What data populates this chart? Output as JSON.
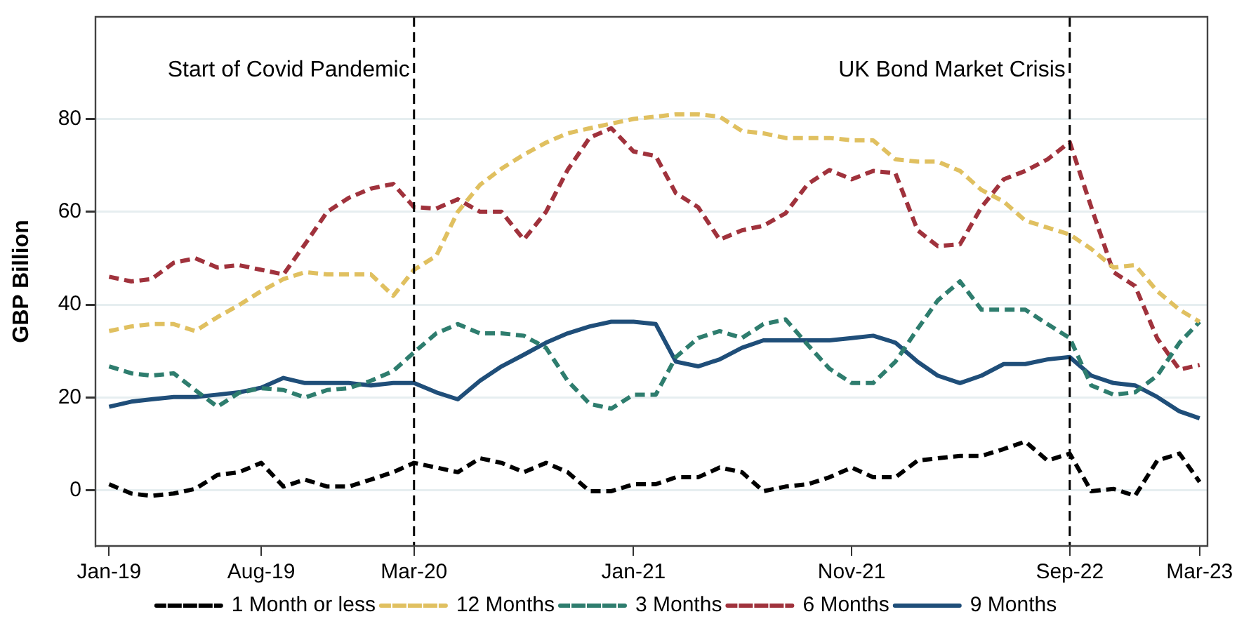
{
  "chart_data": {
    "type": "line",
    "ylabel": "GBP Billion",
    "x": [
      "2019-01",
      "2019-02",
      "2019-03",
      "2019-04",
      "2019-05",
      "2019-06",
      "2019-07",
      "2019-08",
      "2019-09",
      "2019-10",
      "2019-11",
      "2019-12",
      "2020-01",
      "2020-02",
      "2020-03",
      "2020-04",
      "2020-05",
      "2020-06",
      "2020-07",
      "2020-08",
      "2020-09",
      "2020-10",
      "2020-11",
      "2020-12",
      "2021-01",
      "2021-02",
      "2021-03",
      "2021-04",
      "2021-05",
      "2021-06",
      "2021-07",
      "2021-08",
      "2021-09",
      "2021-10",
      "2021-11",
      "2021-12",
      "2022-01",
      "2022-02",
      "2022-03",
      "2022-04",
      "2022-05",
      "2022-06",
      "2022-07",
      "2022-08",
      "2022-09",
      "2022-10",
      "2022-11",
      "2022-12",
      "2023-01",
      "2023-02",
      "2023-03"
    ],
    "series": [
      {
        "name": "1 Month or less",
        "color": "#000000",
        "line_style": "dashed",
        "values": [
          1.3,
          -0.7,
          -1.2,
          -0.7,
          0.3,
          3.3,
          3.9,
          5.9,
          0.8,
          2.3,
          0.8,
          0.8,
          2.3,
          3.9,
          5.9,
          4.9,
          3.9,
          6.9,
          5.9,
          3.9,
          5.9,
          3.9,
          -0.2,
          -0.2,
          1.3,
          1.3,
          2.8,
          2.8,
          4.9,
          3.9,
          -0.2,
          0.8,
          1.3,
          2.8,
          4.9,
          2.8,
          2.8,
          6.4,
          6.9,
          7.4,
          7.4,
          8.9,
          10.5,
          6.4,
          7.9,
          -0.2,
          0.3,
          -1.2,
          6.4,
          7.9,
          1.8
        ]
      },
      {
        "name": "12 Months",
        "color": "#e0c060",
        "line_style": "dashed",
        "values": [
          34.3,
          35.3,
          35.8,
          35.8,
          34.3,
          37.3,
          39.9,
          42.9,
          45.5,
          47,
          46.5,
          46.5,
          46.5,
          41.9,
          47.5,
          50.5,
          60,
          65.8,
          69.3,
          72.3,
          74.9,
          76.9,
          78,
          79,
          80,
          80.5,
          81,
          81,
          80.5,
          77.4,
          76.9,
          75.9,
          75.9,
          75.9,
          75.4,
          75.4,
          71.3,
          70.8,
          70.8,
          68.8,
          64.7,
          62.2,
          58.1,
          56.6,
          55.1,
          52,
          48,
          48.5,
          42.9,
          38.9,
          36.3
        ]
      },
      {
        "name": "3 Months",
        "color": "#2e7d6e",
        "line_style": "dashed",
        "values": [
          26.7,
          25.2,
          24.7,
          25.2,
          21.6,
          18,
          21,
          22,
          21.6,
          20,
          21.6,
          22,
          23.6,
          25.7,
          29.7,
          33.8,
          35.8,
          33.8,
          33.8,
          33.3,
          30.7,
          23.6,
          18.6,
          17.6,
          20.6,
          20.6,
          28.7,
          32.8,
          34.3,
          32.8,
          35.8,
          36.8,
          31.3,
          26.2,
          23.1,
          23.1,
          27.7,
          34.8,
          40.9,
          45,
          38.9,
          38.9,
          38.9,
          35.8,
          32.8,
          22.6,
          20.6,
          21.1,
          24.7,
          31.8,
          36.3
        ]
      },
      {
        "name": "6 Months",
        "color": "#a0323c",
        "line_style": "dashed",
        "values": [
          46,
          45,
          45.5,
          49,
          50,
          48,
          48.5,
          47.5,
          46.5,
          53,
          60,
          63,
          65,
          66,
          61,
          60.7,
          62.7,
          60,
          60,
          54,
          60,
          69,
          76,
          78,
          73,
          72,
          64,
          61,
          54,
          56,
          57,
          59.7,
          66,
          69,
          67,
          68.8,
          68.3,
          56,
          52.6,
          53,
          61,
          67,
          68.8,
          71.3,
          75,
          61,
          47,
          44,
          32.7,
          26,
          27
        ]
      },
      {
        "name": "9 Months",
        "color": "#1f4e79",
        "line_style": "solid",
        "values": [
          18,
          19.1,
          19.6,
          20.1,
          20.1,
          20.6,
          21.1,
          22.1,
          24.2,
          23.1,
          23.1,
          23.1,
          22.6,
          23.1,
          23.1,
          21.1,
          19.6,
          23.6,
          26.7,
          29.2,
          31.8,
          33.8,
          35.3,
          36.3,
          36.3,
          35.8,
          27.7,
          26.7,
          28.2,
          30.7,
          32.3,
          32.3,
          32.3,
          32.3,
          32.8,
          33.3,
          31.8,
          27.7,
          24.7,
          23.1,
          24.7,
          27.2,
          27.2,
          28.2,
          28.7,
          24.7,
          23.1,
          22.6,
          20.1,
          17,
          15.5
        ]
      }
    ],
    "xlim": [
      "2018-12-13",
      "2023-03-12"
    ],
    "xticks": [
      {
        "value": "2019-01",
        "label": "Jan-19"
      },
      {
        "value": "2019-08",
        "label": "Aug-19"
      },
      {
        "value": "2020-03",
        "label": "Mar-20"
      },
      {
        "value": "2021-01",
        "label": "Jan-21"
      },
      {
        "value": "2021-11",
        "label": "Nov-21"
      },
      {
        "value": "2022-09",
        "label": "Sep-22"
      },
      {
        "value": "2023-03",
        "label": "Mar-23"
      }
    ],
    "ylim": [
      -12,
      102
    ],
    "yticks": [
      0,
      20,
      40,
      60,
      80
    ],
    "ref_lines": [
      {
        "axis": "x",
        "value": "2020-03",
        "label": "Start of Covid Pandemic",
        "color": "#000000",
        "line_style": "dashed"
      },
      {
        "axis": "x",
        "value": "2022-09",
        "label": "UK Bond Market Crisis",
        "color": "#000000",
        "line_style": "dashed"
      }
    ],
    "grid": "y",
    "legend": "bottom",
    "marker": "none"
  }
}
